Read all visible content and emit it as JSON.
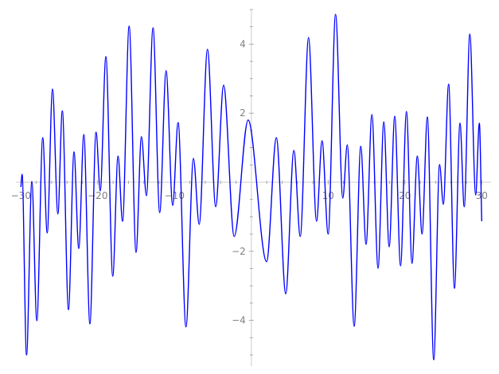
{
  "chart_data": {
    "type": "line",
    "title": "",
    "xlabel": "",
    "ylabel": "",
    "xlim": [
      -30,
      30
    ],
    "ylim": [
      -5.2,
      5.0
    ],
    "grid": false,
    "line_color": "#0000ff",
    "axis_color": "#dddddd",
    "tick_label_color": "#808080",
    "x_ticks": [
      -30,
      -20,
      -10,
      10,
      20,
      30
    ],
    "x_tick_labels": [
      "−30",
      "−20",
      "−10",
      "10",
      "20",
      "30"
    ],
    "y_ticks": [
      -4,
      -2,
      2,
      4
    ],
    "y_tick_labels": [
      "−4",
      "−2",
      "2",
      "4"
    ],
    "series": [
      {
        "x": [
          -30.0,
          -29.85,
          -29.27,
          -28.58,
          -27.93,
          -27.16,
          -26.58,
          -25.89,
          -25.19,
          -24.61,
          -23.81,
          -23.09,
          -22.47,
          -21.81,
          -21.02,
          -20.22,
          -19.67,
          -18.94,
          -18.04,
          -17.36,
          -16.77,
          -15.91,
          -15.01,
          -14.31,
          -13.66,
          -12.8,
          -11.93,
          -11.1,
          -10.24,
          -9.54,
          -8.51,
          -7.54,
          -6.79,
          -5.71,
          -4.64,
          -3.61,
          -2.23,
          -0.42,
          1.99,
          3.26,
          4.48,
          5.54,
          6.37,
          7.45,
          8.49,
          9.21,
          10.0,
          10.97,
          11.91,
          12.49,
          13.39,
          14.25,
          14.94,
          15.7,
          16.5,
          17.25,
          17.95,
          18.67,
          19.43,
          20.2,
          20.92,
          21.61,
          22.23,
          22.92,
          23.75,
          24.51,
          25.0,
          25.69,
          26.45,
          27.17,
          27.72,
          28.45,
          29.21,
          29.69,
          30.0
        ],
        "y": [
          -0.14,
          0.23,
          -5.0,
          0.02,
          -4.01,
          1.29,
          -1.47,
          2.7,
          -0.92,
          2.07,
          -3.69,
          0.88,
          -1.92,
          1.38,
          -4.1,
          1.45,
          -0.25,
          3.64,
          -2.72,
          0.76,
          -1.13,
          4.52,
          -2.03,
          1.32,
          -0.39,
          4.47,
          -0.88,
          3.23,
          -0.67,
          1.73,
          -4.19,
          0.69,
          -1.22,
          3.85,
          -0.71,
          2.81,
          -1.57,
          1.8,
          -2.3,
          1.29,
          -3.23,
          0.92,
          -1.57,
          4.19,
          -1.13,
          1.2,
          -1.5,
          4.86,
          -0.46,
          1.08,
          -4.17,
          1.04,
          -1.8,
          1.96,
          -2.49,
          1.75,
          -1.87,
          1.91,
          -2.42,
          2.05,
          -2.35,
          0.76,
          -1.5,
          1.89,
          -5.14,
          0.51,
          -0.64,
          2.84,
          -3.07,
          1.71,
          -0.71,
          4.29,
          -0.37,
          1.71,
          -1.13
        ]
      }
    ]
  }
}
